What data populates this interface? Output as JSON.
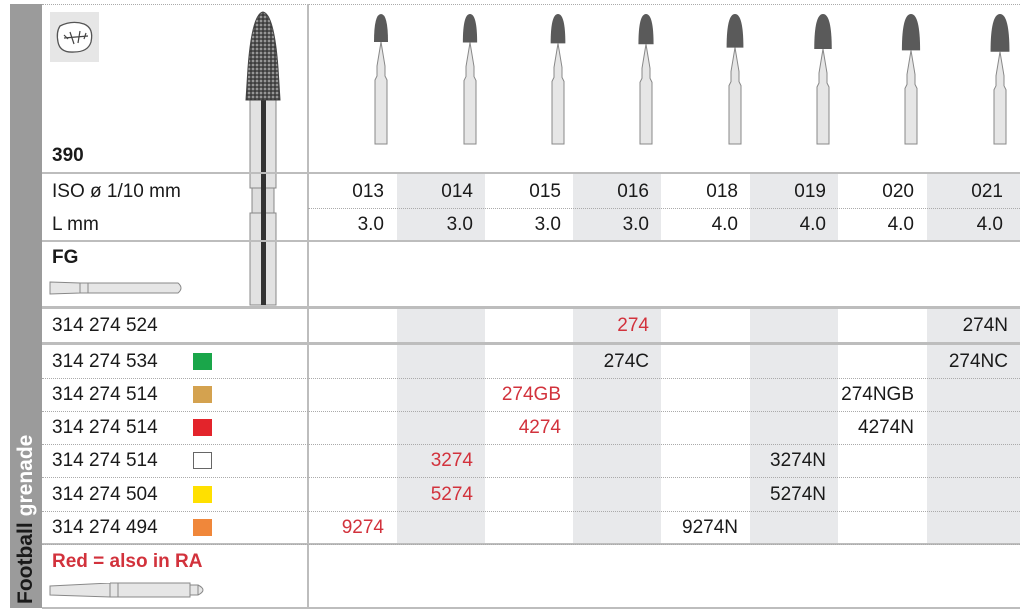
{
  "side_label": {
    "primary": "Football",
    "secondary": "grenade"
  },
  "header": {
    "model": "390",
    "iso_label": "ISO ø 1/10 mm",
    "length_label": "L mm",
    "shank_label": "FG"
  },
  "columns": [
    {
      "iso": "013",
      "length": "3.0",
      "head_scale": 1.0
    },
    {
      "iso": "014",
      "length": "3.0",
      "head_scale": 1.02
    },
    {
      "iso": "015",
      "length": "3.0",
      "head_scale": 1.05
    },
    {
      "iso": "016",
      "length": "3.0",
      "head_scale": 1.08
    },
    {
      "iso": "018",
      "length": "4.0",
      "head_scale": 1.2
    },
    {
      "iso": "019",
      "length": "4.0",
      "head_scale": 1.25
    },
    {
      "iso": "020",
      "length": "4.0",
      "head_scale": 1.3
    },
    {
      "iso": "021",
      "length": "4.0",
      "head_scale": 1.35
    }
  ],
  "rows": [
    {
      "ref": "314 274 524",
      "swatch": null,
      "cells": [
        null,
        null,
        null,
        {
          "text": "274",
          "red": true
        },
        null,
        null,
        null,
        {
          "text": "274N",
          "red": false
        }
      ]
    },
    {
      "ref": "314 274 534",
      "swatch": "#1aa64a",
      "cells": [
        null,
        null,
        null,
        {
          "text": "274C",
          "red": false
        },
        null,
        null,
        null,
        {
          "text": "274NC",
          "red": false
        }
      ]
    },
    {
      "ref": "314 274 514",
      "swatch": "#d4a24f",
      "cells": [
        null,
        null,
        {
          "text": "274GB",
          "red": true
        },
        null,
        null,
        null,
        {
          "text": "274NGB",
          "red": false
        },
        null
      ]
    },
    {
      "ref": "314 274 514",
      "swatch": "#e3242b",
      "cells": [
        null,
        null,
        {
          "text": "4274",
          "red": true
        },
        null,
        null,
        null,
        {
          "text": "4274N",
          "red": false
        },
        null
      ]
    },
    {
      "ref": "314 274 514",
      "swatch": "#ffffff",
      "cells": [
        null,
        {
          "text": "3274",
          "red": true
        },
        null,
        null,
        null,
        {
          "text": "3274N",
          "red": false
        },
        null,
        null
      ]
    },
    {
      "ref": "314 274 504",
      "swatch": "#ffe000",
      "cells": [
        null,
        {
          "text": "5274",
          "red": true
        },
        null,
        null,
        null,
        {
          "text": "5274N",
          "red": false
        },
        null,
        null
      ]
    },
    {
      "ref": "314 274 494",
      "swatch": "#f0873a",
      "cells": [
        {
          "text": "9274",
          "red": true
        },
        null,
        null,
        null,
        {
          "text": "9274N",
          "red": false
        },
        null,
        null,
        null
      ]
    }
  ],
  "footer": {
    "note": "Red = also in RA"
  },
  "colors": {
    "red_text": "#d2323c",
    "shade": "#e8e9eb",
    "rule": "#bdbdbd",
    "side_strip": "#9b9b9b"
  }
}
